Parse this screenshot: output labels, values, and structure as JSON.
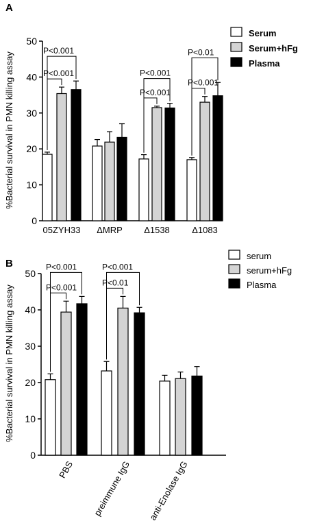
{
  "chart_data": [
    {
      "type": "bar",
      "panel_label": "A",
      "ylabel": "%Bacterial survival in PMN killing assay",
      "ylim": [
        0,
        50
      ],
      "yticks": [
        "0",
        "10",
        "20",
        "30",
        "40",
        "50"
      ],
      "categories": [
        "05ZYH33",
        "ΔMRP",
        "Δ1538",
        "Δ1083"
      ],
      "series": [
        {
          "name": "Serum",
          "values": [
            18.5,
            20.8,
            17.2,
            17.0
          ],
          "errors": [
            0.6,
            1.8,
            1.2,
            0.6
          ]
        },
        {
          "name": "Serum+hFg",
          "values": [
            35.4,
            21.9,
            31.5,
            33.0
          ],
          "errors": [
            1.8,
            2.9,
            0.4,
            1.6
          ]
        },
        {
          "name": "Plasma",
          "values": [
            36.5,
            23.2,
            31.4,
            34.8
          ],
          "errors": [
            2.4,
            3.8,
            1.3,
            3.7
          ]
        }
      ],
      "annotations": [
        {
          "text": "P<0.001",
          "category": 0,
          "from": 0,
          "to": 1,
          "level": 0
        },
        {
          "text": "P<0.001",
          "category": 0,
          "from": 0,
          "to": 2,
          "level": 1
        },
        {
          "text": "P<0.001",
          "category": 2,
          "from": 0,
          "to": 1,
          "level": 0
        },
        {
          "text": "P<0.001",
          "category": 2,
          "from": 0,
          "to": 2,
          "level": 1
        },
        {
          "text": "P<0.001",
          "category": 3,
          "from": 0,
          "to": 1,
          "level": 0
        },
        {
          "text": "P<0.01",
          "category": 3,
          "from": 0,
          "to": 2,
          "level": 1
        }
      ],
      "legend_position": "top-right",
      "colors": [
        "#ffffff",
        "#d4d4d4",
        "#000000"
      ],
      "grid": false
    },
    {
      "type": "bar",
      "panel_label": "B",
      "ylabel": "%Bacterial survival in PMN killing assay",
      "ylim": [
        0,
        50
      ],
      "yticks": [
        "0",
        "10",
        "20",
        "30",
        "40",
        "50"
      ],
      "categories": [
        "PBS",
        "preimmune IgG",
        "anti-Enolase IgG"
      ],
      "series": [
        {
          "name": "serum",
          "values": [
            20.8,
            23.2,
            20.4
          ],
          "errors": [
            1.6,
            2.6,
            1.6
          ]
        },
        {
          "name": "serum+hFg",
          "values": [
            39.4,
            40.5,
            21.1
          ],
          "errors": [
            3.0,
            3.2,
            1.8
          ]
        },
        {
          "name": "Plasma",
          "values": [
            41.7,
            39.2,
            21.8
          ],
          "errors": [
            2.0,
            1.5,
            2.6
          ]
        }
      ],
      "annotations": [
        {
          "text": "P<0.001",
          "category": 0,
          "from": 0,
          "to": 1,
          "level": 0
        },
        {
          "text": "P<0.001",
          "category": 0,
          "from": 0,
          "to": 2,
          "level": 1
        },
        {
          "text": "P<0.01",
          "category": 1,
          "from": 0,
          "to": 1,
          "level": 0
        },
        {
          "text": "P<0.001",
          "category": 1,
          "from": 0,
          "to": 2,
          "level": 1
        }
      ],
      "legend_position": "top-right",
      "colors": [
        "#ffffff",
        "#d4d4d4",
        "#000000"
      ],
      "grid": false
    }
  ]
}
